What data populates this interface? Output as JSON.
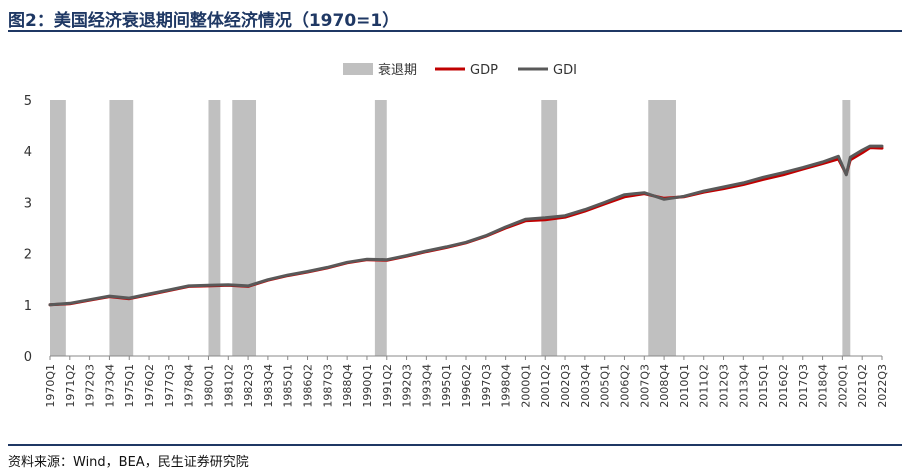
{
  "page": {
    "title": "图2：美国经济衰退期间整体经济情况（1970=1）",
    "source": "资料来源：Wind，BEA，民生证券研究院"
  },
  "colors": {
    "recession": "#c0c0c0",
    "gdp": "#c00000",
    "gdi": "#595959",
    "title": "#1f3864"
  },
  "chart_data": {
    "type": "line",
    "title": "",
    "xlabel": "",
    "ylabel": "",
    "ylim": [
      0,
      5
    ],
    "yticks": [
      0,
      1,
      2,
      3,
      4,
      5
    ],
    "grid": false,
    "legend_position": "top-center",
    "legend": [
      "衰退期",
      "GDP",
      "GDI"
    ],
    "x_range": [
      "1970Q1",
      "2022Q3"
    ],
    "xtick_labels": [
      "1970Q1",
      "1971Q2",
      "1972Q3",
      "1973Q4",
      "1975Q1",
      "1976Q2",
      "1977Q3",
      "1978Q4",
      "1980Q1",
      "1981Q2",
      "1982Q3",
      "1983Q4",
      "1985Q1",
      "1986Q2",
      "1987Q3",
      "1988Q4",
      "1990Q1",
      "1991Q2",
      "1992Q3",
      "1993Q4",
      "1995Q1",
      "1996Q2",
      "1997Q3",
      "1998Q4",
      "2000Q1",
      "2001Q2",
      "2002Q3",
      "2003Q4",
      "2005Q1",
      "2006Q2",
      "2007Q3",
      "2008Q4",
      "2010Q1",
      "2011Q2",
      "2012Q3",
      "2013Q4",
      "2015Q1",
      "2016Q2",
      "2017Q3",
      "2018Q4",
      "2020Q1",
      "2021Q2",
      "2022Q3"
    ],
    "recessions": [
      {
        "start": "1970Q1",
        "end": "1970Q4"
      },
      {
        "start": "1973Q4",
        "end": "1975Q1"
      },
      {
        "start": "1980Q1",
        "end": "1980Q3"
      },
      {
        "start": "1981Q3",
        "end": "1982Q4"
      },
      {
        "start": "1990Q3",
        "end": "1991Q1"
      },
      {
        "start": "2001Q1",
        "end": "2001Q4"
      },
      {
        "start": "2007Q4",
        "end": "2009Q2"
      },
      {
        "start": "2020Q1",
        "end": "2020Q2"
      }
    ],
    "series": [
      {
        "name": "GDP",
        "x": [
          "1970Q1",
          "1971Q2",
          "1972Q3",
          "1973Q4",
          "1975Q1",
          "1976Q2",
          "1977Q3",
          "1978Q4",
          "1980Q1",
          "1981Q2",
          "1982Q3",
          "1983Q4",
          "1985Q1",
          "1986Q2",
          "1987Q3",
          "1988Q4",
          "1990Q1",
          "1991Q2",
          "1992Q3",
          "1993Q4",
          "1995Q1",
          "1996Q2",
          "1997Q3",
          "1998Q4",
          "2000Q1",
          "2001Q2",
          "2002Q3",
          "2003Q4",
          "2005Q1",
          "2006Q2",
          "2007Q3",
          "2008Q4",
          "2010Q1",
          "2011Q2",
          "2012Q3",
          "2013Q4",
          "2015Q1",
          "2016Q2",
          "2017Q3",
          "2018Q4",
          "2019Q4",
          "2020Q2",
          "2020Q3",
          "2021Q2",
          "2021Q4",
          "2022Q3"
        ],
        "values": [
          1.0,
          1.02,
          1.09,
          1.16,
          1.12,
          1.2,
          1.28,
          1.36,
          1.37,
          1.38,
          1.36,
          1.48,
          1.57,
          1.64,
          1.72,
          1.82,
          1.88,
          1.87,
          1.95,
          2.04,
          2.12,
          2.21,
          2.34,
          2.5,
          2.64,
          2.66,
          2.71,
          2.83,
          2.97,
          3.11,
          3.17,
          3.08,
          3.11,
          3.2,
          3.27,
          3.35,
          3.45,
          3.54,
          3.65,
          3.76,
          3.85,
          3.55,
          3.83,
          3.97,
          4.07,
          4.06
        ]
      },
      {
        "name": "GDI",
        "x": [
          "1970Q1",
          "1971Q2",
          "1972Q3",
          "1973Q4",
          "1975Q1",
          "1976Q2",
          "1977Q3",
          "1978Q4",
          "1980Q1",
          "1981Q2",
          "1982Q3",
          "1983Q4",
          "1985Q1",
          "1986Q2",
          "1987Q3",
          "1988Q4",
          "1990Q1",
          "1991Q2",
          "1992Q3",
          "1993Q4",
          "1995Q1",
          "1996Q2",
          "1997Q3",
          "1998Q4",
          "2000Q1",
          "2001Q2",
          "2002Q3",
          "2003Q4",
          "2005Q1",
          "2006Q2",
          "2007Q3",
          "2008Q4",
          "2010Q1",
          "2011Q2",
          "2012Q3",
          "2013Q4",
          "2015Q1",
          "2016Q2",
          "2017Q3",
          "2018Q4",
          "2019Q4",
          "2020Q2",
          "2020Q3",
          "2021Q2",
          "2021Q4",
          "2022Q3"
        ],
        "values": [
          1.0,
          1.03,
          1.1,
          1.17,
          1.13,
          1.21,
          1.29,
          1.37,
          1.38,
          1.39,
          1.37,
          1.49,
          1.58,
          1.65,
          1.73,
          1.83,
          1.89,
          1.88,
          1.96,
          2.05,
          2.13,
          2.22,
          2.35,
          2.52,
          2.67,
          2.7,
          2.74,
          2.86,
          3.0,
          3.15,
          3.19,
          3.06,
          3.12,
          3.22,
          3.3,
          3.38,
          3.49,
          3.58,
          3.68,
          3.79,
          3.9,
          3.54,
          3.88,
          4.02,
          4.1,
          4.1
        ]
      }
    ]
  }
}
